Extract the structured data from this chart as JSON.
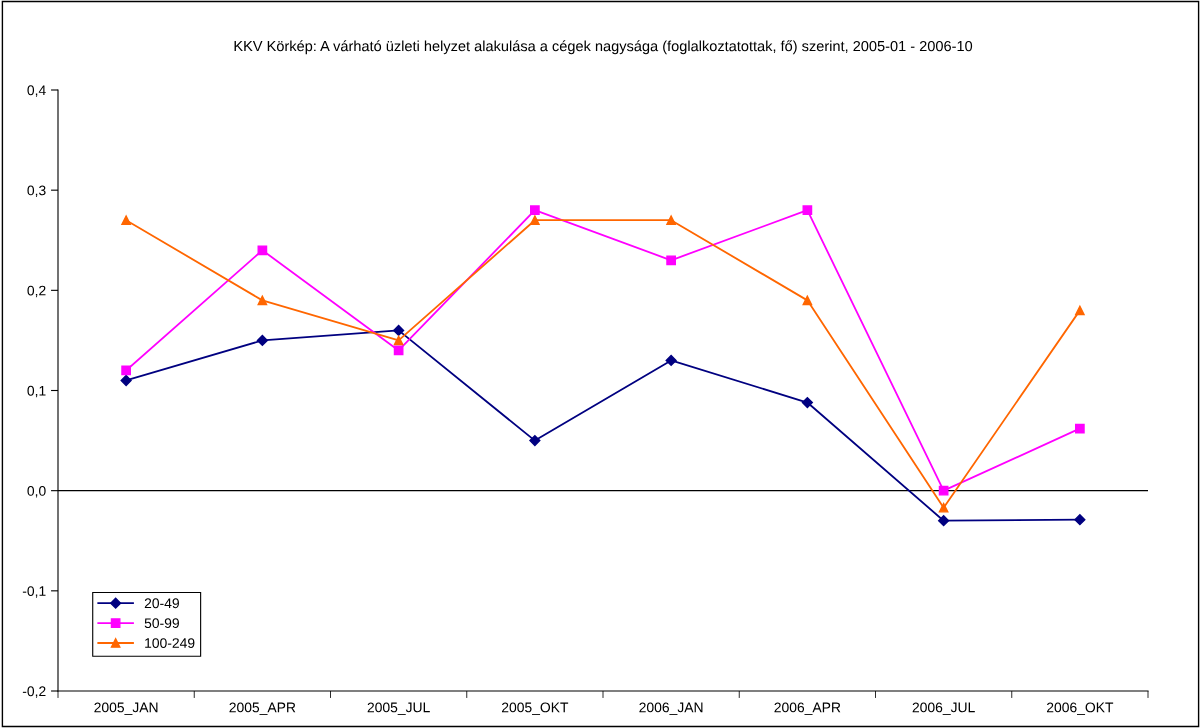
{
  "chart_data": {
    "type": "line",
    "title": "KKV Körkép: A várható üzleti helyzet alakulása a cégek nagysága (foglalkoztatottak, fő) szerint, 2005-01 - 2006-10",
    "categories": [
      "2005_JAN",
      "2005_APR",
      "2005_JUL",
      "2005_OKT",
      "2006_JAN",
      "2006_APR",
      "2006_JUL",
      "2006_OKT"
    ],
    "series": [
      {
        "name": "20-49",
        "color": "#000080",
        "marker": "diamond",
        "values": [
          0.11,
          0.15,
          0.16,
          0.05,
          0.13,
          0.088,
          -0.03,
          -0.029
        ]
      },
      {
        "name": "50-99",
        "color": "#ff00ff",
        "marker": "square",
        "values": [
          0.12,
          0.24,
          0.14,
          0.28,
          0.23,
          0.28,
          0.0,
          0.062
        ]
      },
      {
        "name": "100-249",
        "color": "#ff6600",
        "marker": "triangle",
        "values": [
          0.27,
          0.19,
          0.15,
          0.27,
          0.27,
          0.19,
          -0.017,
          0.18
        ]
      }
    ],
    "ylim": [
      -0.2,
      0.4
    ],
    "yticks": [
      {
        "value": -0.2,
        "label": "-0,2"
      },
      {
        "value": -0.1,
        "label": "-0,1"
      },
      {
        "value": 0.0,
        "label": "0,0"
      },
      {
        "value": 0.1,
        "label": "0,1"
      },
      {
        "value": 0.2,
        "label": "0,2"
      },
      {
        "value": 0.3,
        "label": "0,3"
      },
      {
        "value": 0.4,
        "label": "0,4"
      }
    ],
    "ref_lines": [
      {
        "axis": "y",
        "value": 0.0,
        "color": "#000000"
      }
    ],
    "grid": false,
    "legend": "bottom left",
    "line_style": "solid"
  }
}
